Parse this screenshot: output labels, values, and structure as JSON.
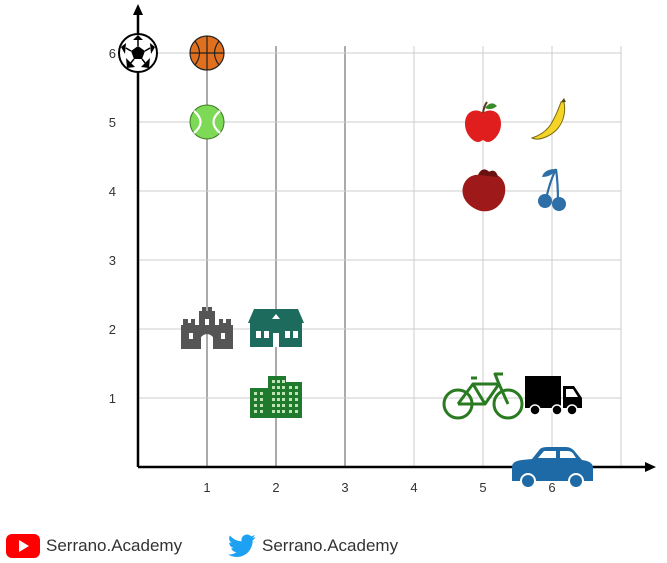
{
  "chart_data": {
    "type": "scatter",
    "title": "",
    "xlabel": "",
    "ylabel": "",
    "xlim": [
      0,
      7
    ],
    "ylim": [
      0,
      6
    ],
    "x_ticks": [
      "1",
      "2",
      "3",
      "4",
      "5",
      "6"
    ],
    "y_ticks": [
      "1",
      "2",
      "3",
      "4",
      "5",
      "6"
    ],
    "grid": true,
    "points": [
      {
        "icon": "soccer-ball-icon",
        "x": 0,
        "y": 6
      },
      {
        "icon": "basketball-icon",
        "x": 1,
        "y": 6
      },
      {
        "icon": "tennis-ball-icon",
        "x": 1,
        "y": 5
      },
      {
        "icon": "apple-icon",
        "x": 5,
        "y": 5
      },
      {
        "icon": "banana-icon",
        "x": 6,
        "y": 5
      },
      {
        "icon": "strawberry-icon",
        "x": 5,
        "y": 4
      },
      {
        "icon": "cherry-icon",
        "x": 6,
        "y": 4
      },
      {
        "icon": "castle-icon",
        "x": 1,
        "y": 2
      },
      {
        "icon": "house-icon",
        "x": 2,
        "y": 2
      },
      {
        "icon": "apartment-building-icon",
        "x": 2,
        "y": 1
      },
      {
        "icon": "bicycle-icon",
        "x": 5,
        "y": 1
      },
      {
        "icon": "truck-icon",
        "x": 6,
        "y": 1
      },
      {
        "icon": "car-icon",
        "x": 6,
        "y": 0
      }
    ],
    "colors": {
      "axis": "#000000",
      "grid": "#cccccc",
      "grid_dark": "#555555",
      "soccer": "#000000",
      "basketball": "#e0701e",
      "tennis": "#7ed957",
      "apple": "#e01e1e",
      "banana": "#f5d327",
      "strawberry": "#9e1a1a",
      "cherry": "#2e6fa8",
      "castle": "#555555",
      "house": "#1d6b5c",
      "apartment": "#1f7a2e",
      "bicycle": "#2a7a22",
      "truck": "#000000",
      "car": "#1e6aa6"
    }
  },
  "footer": {
    "youtube_label": "Serrano.Academy",
    "twitter_label": "Serrano.Academy",
    "youtube_color": "#ff0000",
    "twitter_color": "#1da1f2"
  }
}
